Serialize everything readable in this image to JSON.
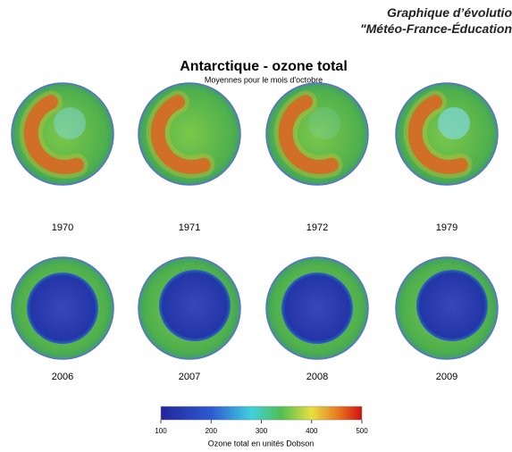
{
  "header": {
    "line1": "Graphique d’évolutio",
    "line2": "\"Météo-France-Éducation"
  },
  "title": "Antarctique - ozone total",
  "subtitle": "Moyennes pour le mois d'octobre",
  "years": [
    "1970",
    "1971",
    "1972",
    "1979",
    "2006",
    "2007",
    "2008",
    "2009"
  ],
  "colorbar": {
    "ticks": [
      100,
      200,
      300,
      400,
      500
    ],
    "label": "Ozone total en unités Dobson"
  }
}
